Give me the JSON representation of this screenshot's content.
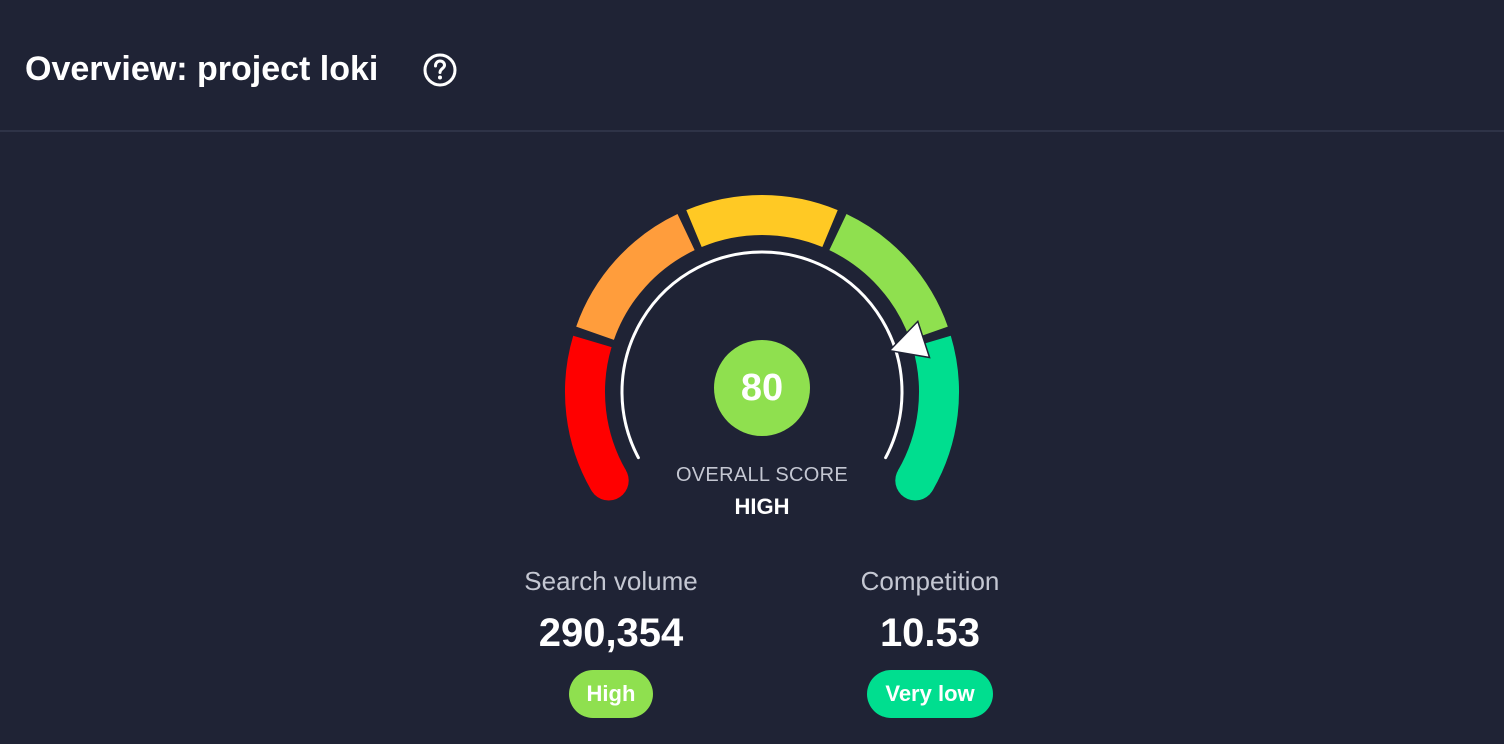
{
  "header": {
    "title": "Overview: project loki",
    "help_icon": "question-circle-icon"
  },
  "gauge": {
    "score": "80",
    "score_value": 80,
    "score_color": "#8fe04f",
    "label": "OVERALL SCORE",
    "level": "HIGH",
    "segment_colors": [
      "#ff0000",
      "#ff9d3c",
      "#ffc924",
      "#8fe04f",
      "#00de8f"
    ]
  },
  "metrics": [
    {
      "label": "Search volume",
      "value": "290,354",
      "badge": "High",
      "badge_color": "#8fe04f"
    },
    {
      "label": "Competition",
      "value": "10.53",
      "badge": "Very low",
      "badge_color": "#00de8f"
    }
  ]
}
